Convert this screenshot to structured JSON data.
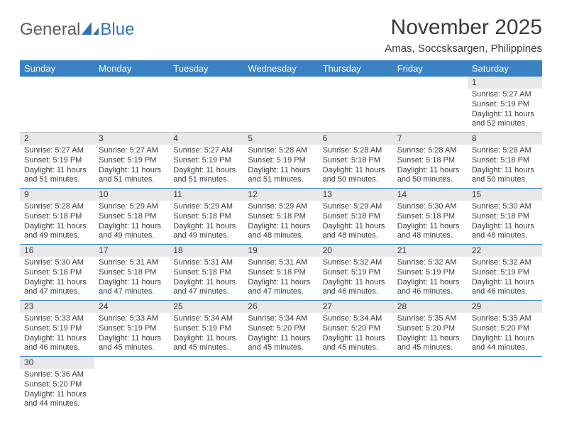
{
  "logo": {
    "word1": "General",
    "word2": "Blue"
  },
  "title": "November 2025",
  "location": "Amas, Soccsksargen, Philippines",
  "header_bg": "#3a82c4",
  "header_text_color": "#ffffff",
  "daynum_bg": "#e8e8e8",
  "row_border_color": "#3a82c4",
  "blank_border_color": "#bcbcbc",
  "text_color": "#3a3a3a",
  "weekdays": [
    "Sunday",
    "Monday",
    "Tuesday",
    "Wednesday",
    "Thursday",
    "Friday",
    "Saturday"
  ],
  "rows": [
    {
      "class": "row-blank",
      "cells": [
        {
          "empty": true
        },
        {
          "empty": true
        },
        {
          "empty": true
        },
        {
          "empty": true
        },
        {
          "empty": true
        },
        {
          "empty": true
        },
        {
          "day": "1",
          "l1": "Sunrise: 5:27 AM",
          "l2": "Sunset: 5:19 PM",
          "l3": "Daylight: 11 hours",
          "l4": "and 52 minutes."
        }
      ]
    },
    {
      "class": "",
      "cells": [
        {
          "day": "2",
          "l1": "Sunrise: 5:27 AM",
          "l2": "Sunset: 5:19 PM",
          "l3": "Daylight: 11 hours",
          "l4": "and 51 minutes."
        },
        {
          "day": "3",
          "l1": "Sunrise: 5:27 AM",
          "l2": "Sunset: 5:19 PM",
          "l3": "Daylight: 11 hours",
          "l4": "and 51 minutes."
        },
        {
          "day": "4",
          "l1": "Sunrise: 5:27 AM",
          "l2": "Sunset: 5:19 PM",
          "l3": "Daylight: 11 hours",
          "l4": "and 51 minutes."
        },
        {
          "day": "5",
          "l1": "Sunrise: 5:28 AM",
          "l2": "Sunset: 5:19 PM",
          "l3": "Daylight: 11 hours",
          "l4": "and 51 minutes."
        },
        {
          "day": "6",
          "l1": "Sunrise: 5:28 AM",
          "l2": "Sunset: 5:18 PM",
          "l3": "Daylight: 11 hours",
          "l4": "and 50 minutes."
        },
        {
          "day": "7",
          "l1": "Sunrise: 5:28 AM",
          "l2": "Sunset: 5:18 PM",
          "l3": "Daylight: 11 hours",
          "l4": "and 50 minutes."
        },
        {
          "day": "8",
          "l1": "Sunrise: 5:28 AM",
          "l2": "Sunset: 5:18 PM",
          "l3": "Daylight: 11 hours",
          "l4": "and 50 minutes."
        }
      ]
    },
    {
      "class": "",
      "cells": [
        {
          "day": "9",
          "l1": "Sunrise: 5:28 AM",
          "l2": "Sunset: 5:18 PM",
          "l3": "Daylight: 11 hours",
          "l4": "and 49 minutes."
        },
        {
          "day": "10",
          "l1": "Sunrise: 5:29 AM",
          "l2": "Sunset: 5:18 PM",
          "l3": "Daylight: 11 hours",
          "l4": "and 49 minutes."
        },
        {
          "day": "11",
          "l1": "Sunrise: 5:29 AM",
          "l2": "Sunset: 5:18 PM",
          "l3": "Daylight: 11 hours",
          "l4": "and 49 minutes."
        },
        {
          "day": "12",
          "l1": "Sunrise: 5:29 AM",
          "l2": "Sunset: 5:18 PM",
          "l3": "Daylight: 11 hours",
          "l4": "and 48 minutes."
        },
        {
          "day": "13",
          "l1": "Sunrise: 5:29 AM",
          "l2": "Sunset: 5:18 PM",
          "l3": "Daylight: 11 hours",
          "l4": "and 48 minutes."
        },
        {
          "day": "14",
          "l1": "Sunrise: 5:30 AM",
          "l2": "Sunset: 5:18 PM",
          "l3": "Daylight: 11 hours",
          "l4": "and 48 minutes."
        },
        {
          "day": "15",
          "l1": "Sunrise: 5:30 AM",
          "l2": "Sunset: 5:18 PM",
          "l3": "Daylight: 11 hours",
          "l4": "and 48 minutes."
        }
      ]
    },
    {
      "class": "",
      "cells": [
        {
          "day": "16",
          "l1": "Sunrise: 5:30 AM",
          "l2": "Sunset: 5:18 PM",
          "l3": "Daylight: 11 hours",
          "l4": "and 47 minutes."
        },
        {
          "day": "17",
          "l1": "Sunrise: 5:31 AM",
          "l2": "Sunset: 5:18 PM",
          "l3": "Daylight: 11 hours",
          "l4": "and 47 minutes."
        },
        {
          "day": "18",
          "l1": "Sunrise: 5:31 AM",
          "l2": "Sunset: 5:18 PM",
          "l3": "Daylight: 11 hours",
          "l4": "and 47 minutes."
        },
        {
          "day": "19",
          "l1": "Sunrise: 5:31 AM",
          "l2": "Sunset: 5:18 PM",
          "l3": "Daylight: 11 hours",
          "l4": "and 47 minutes."
        },
        {
          "day": "20",
          "l1": "Sunrise: 5:32 AM",
          "l2": "Sunset: 5:19 PM",
          "l3": "Daylight: 11 hours",
          "l4": "and 46 minutes."
        },
        {
          "day": "21",
          "l1": "Sunrise: 5:32 AM",
          "l2": "Sunset: 5:19 PM",
          "l3": "Daylight: 11 hours",
          "l4": "and 46 minutes."
        },
        {
          "day": "22",
          "l1": "Sunrise: 5:32 AM",
          "l2": "Sunset: 5:19 PM",
          "l3": "Daylight: 11 hours",
          "l4": "and 46 minutes."
        }
      ]
    },
    {
      "class": "",
      "cells": [
        {
          "day": "23",
          "l1": "Sunrise: 5:33 AM",
          "l2": "Sunset: 5:19 PM",
          "l3": "Daylight: 11 hours",
          "l4": "and 46 minutes."
        },
        {
          "day": "24",
          "l1": "Sunrise: 5:33 AM",
          "l2": "Sunset: 5:19 PM",
          "l3": "Daylight: 11 hours",
          "l4": "and 45 minutes."
        },
        {
          "day": "25",
          "l1": "Sunrise: 5:34 AM",
          "l2": "Sunset: 5:19 PM",
          "l3": "Daylight: 11 hours",
          "l4": "and 45 minutes."
        },
        {
          "day": "26",
          "l1": "Sunrise: 5:34 AM",
          "l2": "Sunset: 5:20 PM",
          "l3": "Daylight: 11 hours",
          "l4": "and 45 minutes."
        },
        {
          "day": "27",
          "l1": "Sunrise: 5:34 AM",
          "l2": "Sunset: 5:20 PM",
          "l3": "Daylight: 11 hours",
          "l4": "and 45 minutes."
        },
        {
          "day": "28",
          "l1": "Sunrise: 5:35 AM",
          "l2": "Sunset: 5:20 PM",
          "l3": "Daylight: 11 hours",
          "l4": "and 45 minutes."
        },
        {
          "day": "29",
          "l1": "Sunrise: 5:35 AM",
          "l2": "Sunset: 5:20 PM",
          "l3": "Daylight: 11 hours",
          "l4": "and 44 minutes."
        }
      ]
    },
    {
      "class": "row-last",
      "cells": [
        {
          "day": "30",
          "l1": "Sunrise: 5:36 AM",
          "l2": "Sunset: 5:20 PM",
          "l3": "Daylight: 11 hours",
          "l4": "and 44 minutes."
        },
        {
          "empty": true
        },
        {
          "empty": true
        },
        {
          "empty": true
        },
        {
          "empty": true
        },
        {
          "empty": true
        },
        {
          "empty": true
        }
      ]
    }
  ]
}
